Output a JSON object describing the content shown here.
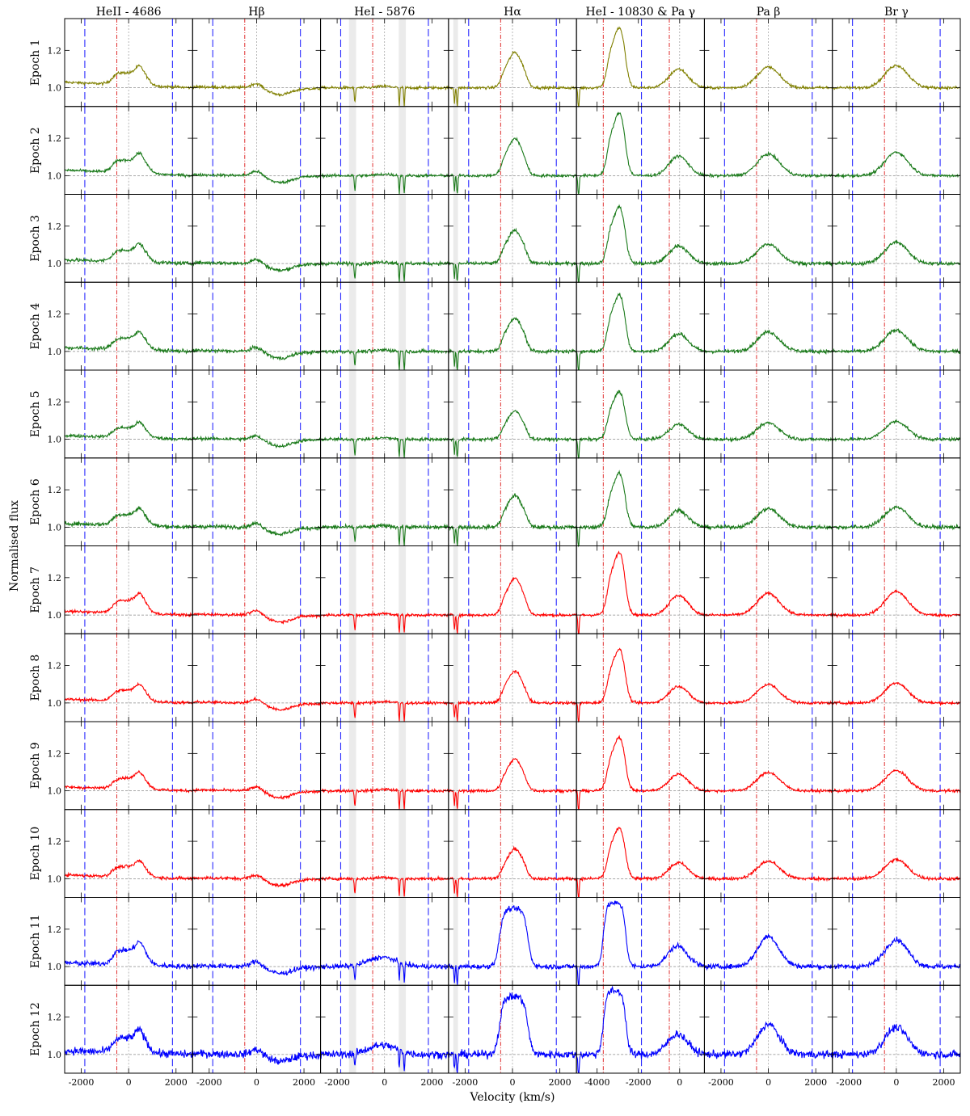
{
  "chart_data": {
    "type": "line",
    "ylabel": "Normalised flux",
    "xlabel": "Velocity (km/s)",
    "ylim": [
      0.9,
      1.37
    ],
    "yticks": [
      1.0,
      1.2
    ],
    "ytick_labels": [
      "1.0",
      "1.2"
    ],
    "xtick_labels": [
      "-2000",
      "0",
      "2000"
    ],
    "xtick_labels_col5": [
      "-4000",
      "-2000",
      "0"
    ],
    "grid": false,
    "reference_line": 1.0,
    "columns": [
      {
        "label": "HeII - 4686",
        "xlim": [
          -2700,
          2700
        ],
        "xticks": [
          -2000,
          0,
          2000
        ],
        "red_lines": [
          -500
        ],
        "blue_lines": [
          -1850,
          1850
        ],
        "profile": "heii"
      },
      {
        "label": "Hβ",
        "xlim": [
          -2700,
          2700
        ],
        "xticks": [
          -2000,
          0,
          2000
        ],
        "red_lines": [
          -500
        ],
        "blue_lines": [
          -1850,
          1850
        ],
        "profile": "hbeta"
      },
      {
        "label": "HeI - 5876",
        "xlim": [
          -2700,
          2700
        ],
        "xticks": [
          -2000,
          0,
          2000
        ],
        "red_lines": [
          -500
        ],
        "blue_lines": [
          -1850,
          1850
        ],
        "shaded": [
          [
            -1500,
            -1200
          ],
          [
            600,
            900
          ]
        ],
        "profile": "hei5876"
      },
      {
        "label": "Hα",
        "xlim": [
          -2700,
          2700
        ],
        "xticks": [
          -2000,
          0,
          2000
        ],
        "red_lines": [
          -500
        ],
        "blue_lines": [
          -1850,
          1850
        ],
        "shaded": [
          [
            -2500,
            -2300
          ]
        ],
        "profile": "halpha"
      },
      {
        "label": "HeI - 10830 & Pa γ",
        "xlim": [
          -5000,
          1200
        ],
        "xticks": [
          -4000,
          -2000,
          0
        ],
        "red_lines": [
          -3700,
          -500
        ],
        "blue_lines": [
          -1850
        ],
        "shaded": [
          [
            -5000,
            -4950
          ]
        ],
        "profile": "hei10830"
      },
      {
        "label": "Pa β",
        "xlim": [
          -2700,
          2700
        ],
        "xticks": [
          -2000,
          0,
          2000
        ],
        "red_lines": [
          -500
        ],
        "blue_lines": [
          -1850,
          1850
        ],
        "profile": "pabeta"
      },
      {
        "label": "Br γ",
        "xlim": [
          -2700,
          2700
        ],
        "xticks": [
          -2000,
          0,
          2000
        ],
        "red_lines": [
          -500
        ],
        "blue_lines": [
          -1850,
          1850
        ],
        "profile": "brgamma"
      }
    ],
    "series": [
      {
        "label": "Epoch 1",
        "color": "#808000",
        "amp": 1.0,
        "noise": 0.007
      },
      {
        "label": "Epoch 2",
        "color": "#1a7a1a",
        "amp": 1.05,
        "noise": 0.007
      },
      {
        "label": "Epoch 3",
        "color": "#1a7a1a",
        "amp": 0.95,
        "noise": 0.009
      },
      {
        "label": "Epoch 4",
        "color": "#1a7a1a",
        "amp": 0.95,
        "noise": 0.009
      },
      {
        "label": "Epoch 5",
        "color": "#1a7a1a",
        "amp": 0.8,
        "noise": 0.008
      },
      {
        "label": "Epoch 6",
        "color": "#1a7a1a",
        "amp": 0.9,
        "noise": 0.01
      },
      {
        "label": "Epoch 7",
        "color": "#ff0000",
        "amp": 1.05,
        "noise": 0.007
      },
      {
        "label": "Epoch 8",
        "color": "#ff0000",
        "amp": 0.9,
        "noise": 0.007
      },
      {
        "label": "Epoch 9",
        "color": "#ff0000",
        "amp": 0.9,
        "noise": 0.007
      },
      {
        "label": "Epoch 10",
        "color": "#ff0000",
        "amp": 0.85,
        "noise": 0.008
      },
      {
        "label": "Epoch 11",
        "color": "#0000ff",
        "amp": 1.2,
        "noise": 0.013
      },
      {
        "label": "Epoch 12",
        "color": "#0000ff",
        "amp": 1.2,
        "noise": 0.02
      }
    ]
  }
}
